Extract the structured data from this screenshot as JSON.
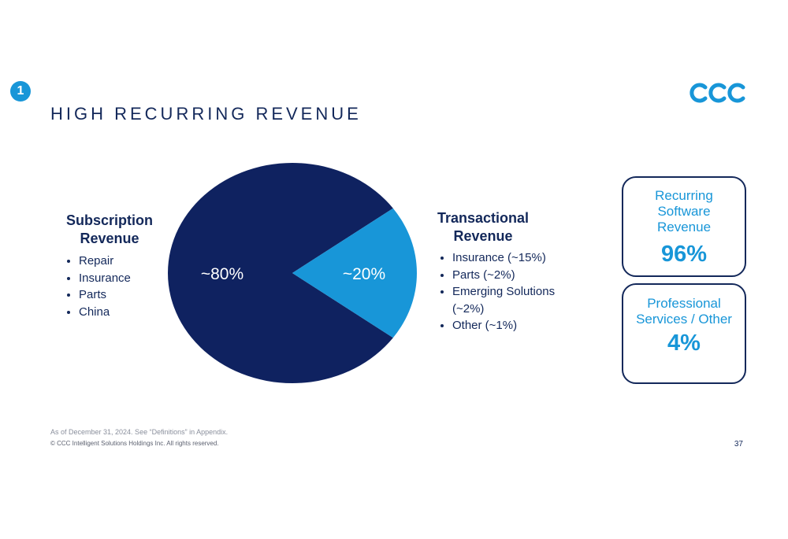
{
  "slide": {
    "badge": "1",
    "title": "HIGH RECURRING REVENUE",
    "logo_text": "CCC",
    "page_number": "37",
    "footnote": "As of December 31, 2024. See “Definitions” in Appendix.",
    "copyright": "© CCC Intelligent Solutions Holdings Inc. All rights reserved."
  },
  "subscription": {
    "heading": "Subscription Revenue",
    "items": [
      "Repair",
      "Insurance",
      "Parts",
      "China"
    ]
  },
  "transactional": {
    "heading": "Transactional Revenue",
    "items": [
      "Insurance (~15%)",
      "Parts (~2%)",
      "Emerging Solutions (~2%)",
      "Other (~1%)"
    ]
  },
  "kpis": [
    {
      "label": "Recurring Software Revenue",
      "value": "96%"
    },
    {
      "label": "Professional Services / Other",
      "value": "4%"
    }
  ],
  "colors": {
    "navy": "#0f2260",
    "blue": "#1896d8",
    "text": "#13285a"
  },
  "chart_data": {
    "type": "pie",
    "slices": [
      {
        "name": "Subscription Revenue",
        "value": 80,
        "label": "~80%",
        "color": "#0f2260"
      },
      {
        "name": "Transactional Revenue",
        "value": 20,
        "label": "~20%",
        "color": "#1896d8"
      }
    ],
    "start_angle_deg": -36
  }
}
